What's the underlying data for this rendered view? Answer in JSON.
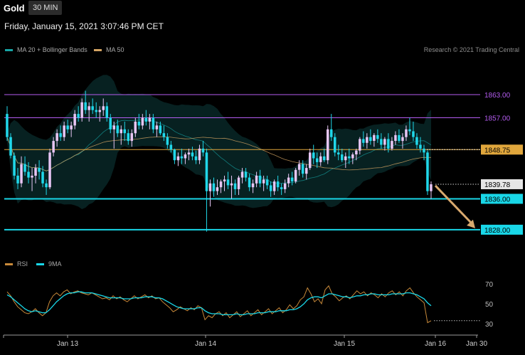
{
  "header": {
    "symbol": "Gold",
    "timeframe": "30 MIN",
    "datetime": "Friday, January 15, 2021 3:07:46 PM CET",
    "copyright": "Research © 2021 Trading Central"
  },
  "legend": {
    "bollinger_label": "MA 20 + Bollinger Bands",
    "bollinger_color": "#17a5a5",
    "ma50_label": "MA 50",
    "ma50_color": "#d4a463",
    "rsi_label": "RSI",
    "rsi_color": "#c98a3a",
    "rsi_ma_label": "9MA",
    "rsi_ma_color": "#19d7e8"
  },
  "levels": [
    {
      "label": "1863.00",
      "value": 1863.0,
      "color": "#b45cf0",
      "style": "line"
    },
    {
      "label": "1857.00",
      "value": 1857.0,
      "color": "#b45cf0",
      "style": "line"
    },
    {
      "label": "1848.75",
      "value": 1848.75,
      "color": "#e0a63c",
      "style": "line-box"
    },
    {
      "label": "1839.78",
      "value": 1839.78,
      "color": "#d9d9d9",
      "style": "dotted-box"
    },
    {
      "label": "1836.00",
      "value": 1836.0,
      "color": "#19d7e8",
      "style": "line-box"
    },
    {
      "label": "1828.00",
      "value": 1828.0,
      "color": "#19d7e8",
      "style": "line-box"
    }
  ],
  "rsi_ticks": [
    "70",
    "50",
    "30"
  ],
  "x_labels": [
    "Jan 13",
    "Jan 14",
    "Jan 15",
    "Jan 16",
    "Jan 30"
  ],
  "chart_data": {
    "type": "candlestick",
    "title": "Gold",
    "timeframe": "30 MIN",
    "y_range": [
      1823,
      1870
    ],
    "grid": false,
    "candles": [
      [
        1858.0,
        1860.0,
        1851.0,
        1852.0
      ],
      [
        1852.0,
        1853.0,
        1846.5,
        1847.2
      ],
      [
        1847.2,
        1848.0,
        1841.0,
        1842.0
      ],
      [
        1842.0,
        1844.0,
        1838.5,
        1840.0
      ],
      [
        1840.0,
        1847.0,
        1839.0,
        1845.0
      ],
      [
        1845.0,
        1847.0,
        1842.0,
        1843.0
      ],
      [
        1843.0,
        1845.5,
        1840.0,
        1841.5
      ],
      [
        1841.5,
        1844.0,
        1838.0,
        1842.0
      ],
      [
        1842.0,
        1845.0,
        1840.0,
        1844.0
      ],
      [
        1844.0,
        1846.0,
        1841.0,
        1843.0
      ],
      [
        1843.0,
        1844.5,
        1839.0,
        1840.0
      ],
      [
        1840.0,
        1841.0,
        1837.0,
        1839.0
      ],
      [
        1839.0,
        1849.0,
        1838.5,
        1848.0
      ],
      [
        1848.0,
        1852.0,
        1847.0,
        1851.0
      ],
      [
        1851.0,
        1854.0,
        1849.5,
        1853.0
      ],
      [
        1853.0,
        1855.0,
        1851.0,
        1852.0
      ],
      [
        1852.0,
        1856.0,
        1851.0,
        1855.0
      ],
      [
        1855.0,
        1856.5,
        1853.0,
        1854.0
      ],
      [
        1854.0,
        1856.0,
        1852.0,
        1855.0
      ],
      [
        1855.0,
        1859.0,
        1854.0,
        1858.0
      ],
      [
        1858.0,
        1860.0,
        1856.0,
        1857.0
      ],
      [
        1857.0,
        1862.0,
        1856.0,
        1861.0
      ],
      [
        1861.0,
        1864.0,
        1858.0,
        1859.0
      ],
      [
        1859.0,
        1861.0,
        1856.0,
        1860.0
      ],
      [
        1860.0,
        1862.0,
        1858.0,
        1859.0
      ],
      [
        1859.0,
        1861.0,
        1857.0,
        1858.5
      ],
      [
        1858.5,
        1860.0,
        1856.0,
        1859.0
      ],
      [
        1859.0,
        1862.0,
        1857.5,
        1860.0
      ],
      [
        1860.0,
        1861.0,
        1856.0,
        1857.0
      ],
      [
        1857.0,
        1858.0,
        1853.0,
        1854.0
      ],
      [
        1854.0,
        1856.0,
        1849.0,
        1855.0
      ],
      [
        1855.0,
        1856.5,
        1852.0,
        1853.0
      ],
      [
        1853.0,
        1855.0,
        1850.0,
        1854.0
      ],
      [
        1854.0,
        1856.0,
        1851.0,
        1853.0
      ],
      [
        1853.0,
        1854.0,
        1850.0,
        1851.0
      ],
      [
        1851.0,
        1854.0,
        1849.5,
        1853.0
      ],
      [
        1853.0,
        1857.0,
        1852.0,
        1856.0
      ],
      [
        1856.0,
        1858.0,
        1854.0,
        1855.0
      ],
      [
        1855.0,
        1858.0,
        1854.0,
        1857.0
      ],
      [
        1857.0,
        1859.0,
        1855.0,
        1856.0
      ],
      [
        1856.0,
        1858.0,
        1854.0,
        1857.0
      ],
      [
        1857.0,
        1858.0,
        1853.0,
        1854.0
      ],
      [
        1854.0,
        1856.0,
        1852.0,
        1855.0
      ],
      [
        1855.0,
        1856.0,
        1852.5,
        1853.0
      ],
      [
        1853.0,
        1855.0,
        1851.0,
        1852.0
      ],
      [
        1852.0,
        1853.0,
        1849.0,
        1850.0
      ],
      [
        1850.0,
        1851.0,
        1848.0,
        1848.75
      ],
      [
        1848.75,
        1849.0,
        1845.0,
        1846.0
      ],
      [
        1846.0,
        1848.0,
        1844.5,
        1847.0
      ],
      [
        1847.0,
        1849.0,
        1845.0,
        1846.5
      ],
      [
        1846.5,
        1848.0,
        1845.0,
        1847.5
      ],
      [
        1847.5,
        1849.0,
        1846.0,
        1848.0
      ],
      [
        1848.0,
        1849.5,
        1846.0,
        1847.0
      ],
      [
        1847.0,
        1848.5,
        1845.0,
        1846.0
      ],
      [
        1846.0,
        1850.0,
        1845.0,
        1849.0
      ],
      [
        1849.0,
        1851.0,
        1847.0,
        1848.0
      ],
      [
        1848.0,
        1849.0,
        1827.5,
        1838.0
      ],
      [
        1838.0,
        1841.0,
        1834.0,
        1840.0
      ],
      [
        1840.0,
        1841.5,
        1836.5,
        1838.0
      ],
      [
        1838.0,
        1841.0,
        1837.0,
        1839.0
      ],
      [
        1839.0,
        1841.0,
        1837.5,
        1840.5
      ],
      [
        1840.5,
        1842.0,
        1838.0,
        1841.0
      ],
      [
        1841.0,
        1843.0,
        1838.5,
        1839.5
      ],
      [
        1839.5,
        1842.0,
        1836.0,
        1840.0
      ],
      [
        1840.0,
        1841.0,
        1837.0,
        1838.5
      ],
      [
        1838.5,
        1842.0,
        1837.0,
        1841.5
      ],
      [
        1841.5,
        1844.0,
        1840.0,
        1843.0
      ],
      [
        1843.0,
        1844.0,
        1840.5,
        1841.5
      ],
      [
        1841.5,
        1842.5,
        1838.0,
        1839.0
      ],
      [
        1839.0,
        1841.0,
        1837.5,
        1840.0
      ],
      [
        1840.0,
        1843.0,
        1839.0,
        1842.0
      ],
      [
        1842.0,
        1843.5,
        1839.0,
        1840.0
      ],
      [
        1840.0,
        1842.0,
        1838.0,
        1841.0
      ],
      [
        1841.0,
        1842.0,
        1838.5,
        1839.5
      ],
      [
        1839.5,
        1840.5,
        1836.5,
        1838.0
      ],
      [
        1838.0,
        1841.0,
        1837.0,
        1840.5
      ],
      [
        1840.5,
        1842.0,
        1838.0,
        1839.0
      ],
      [
        1839.0,
        1840.0,
        1837.0,
        1838.5
      ],
      [
        1838.5,
        1841.0,
        1837.5,
        1840.0
      ],
      [
        1840.0,
        1842.5,
        1839.0,
        1841.5
      ],
      [
        1841.5,
        1843.0,
        1839.5,
        1840.5
      ],
      [
        1840.5,
        1844.0,
        1840.0,
        1843.5
      ],
      [
        1843.5,
        1846.0,
        1842.0,
        1845.0
      ],
      [
        1845.0,
        1846.0,
        1841.5,
        1842.5
      ],
      [
        1842.5,
        1845.0,
        1841.0,
        1844.0
      ],
      [
        1844.0,
        1849.0,
        1843.5,
        1848.0
      ],
      [
        1848.0,
        1850.0,
        1845.0,
        1846.5
      ],
      [
        1846.5,
        1848.0,
        1844.0,
        1845.5
      ],
      [
        1845.5,
        1848.0,
        1844.5,
        1847.0
      ],
      [
        1847.0,
        1849.0,
        1845.5,
        1846.0
      ],
      [
        1846.0,
        1855.0,
        1845.0,
        1854.0
      ],
      [
        1854.0,
        1858.0,
        1851.0,
        1852.0
      ],
      [
        1852.0,
        1853.0,
        1847.0,
        1848.0
      ],
      [
        1848.0,
        1850.0,
        1846.0,
        1847.5
      ],
      [
        1847.5,
        1849.0,
        1845.5,
        1846.0
      ],
      [
        1846.0,
        1848.0,
        1844.0,
        1847.0
      ],
      [
        1847.0,
        1849.0,
        1845.0,
        1846.5
      ],
      [
        1846.5,
        1848.0,
        1845.0,
        1847.5
      ],
      [
        1847.5,
        1849.0,
        1846.0,
        1848.5
      ],
      [
        1848.5,
        1852.0,
        1847.5,
        1851.5
      ],
      [
        1851.5,
        1853.5,
        1849.5,
        1850.5
      ],
      [
        1850.5,
        1853.0,
        1849.0,
        1852.0
      ],
      [
        1852.0,
        1854.0,
        1850.0,
        1851.0
      ],
      [
        1851.0,
        1853.0,
        1849.5,
        1852.5
      ],
      [
        1852.5,
        1854.0,
        1850.5,
        1851.5
      ],
      [
        1851.5,
        1853.0,
        1849.0,
        1850.0
      ],
      [
        1850.0,
        1852.0,
        1848.5,
        1851.5
      ],
      [
        1851.5,
        1853.0,
        1848.0,
        1849.0
      ],
      [
        1849.0,
        1852.0,
        1848.5,
        1851.0
      ],
      [
        1851.0,
        1853.5,
        1850.0,
        1852.5
      ],
      [
        1852.5,
        1854.0,
        1850.5,
        1851.0
      ],
      [
        1851.0,
        1853.0,
        1849.0,
        1852.0
      ],
      [
        1852.0,
        1855.0,
        1851.0,
        1854.0
      ],
      [
        1854.0,
        1857.0,
        1852.5,
        1853.5
      ],
      [
        1853.5,
        1856.0,
        1851.0,
        1852.0
      ],
      [
        1852.0,
        1853.0,
        1849.0,
        1850.0
      ],
      [
        1850.0,
        1852.0,
        1848.0,
        1849.0
      ],
      [
        1849.0,
        1850.0,
        1846.0,
        1848.0
      ],
      [
        1848.0,
        1848.5,
        1837.0,
        1838.0
      ],
      [
        1838.0,
        1840.5,
        1836.0,
        1839.78
      ]
    ],
    "rsi": [
      62,
      58,
      52,
      47,
      44,
      41,
      40,
      42,
      45,
      41,
      38,
      41,
      52,
      58,
      61,
      58,
      62,
      64,
      60,
      62,
      63,
      61,
      60,
      59,
      61,
      59,
      57,
      55,
      56,
      54,
      58,
      55,
      57,
      54,
      52,
      55,
      58,
      55,
      57,
      59,
      56,
      58,
      55,
      56,
      52,
      49,
      46,
      42,
      44,
      47,
      45,
      43,
      46,
      44,
      48,
      46,
      34,
      38,
      36,
      40,
      42,
      38,
      41,
      36,
      39,
      42,
      37,
      40,
      43,
      38,
      41,
      44,
      39,
      42,
      45,
      40,
      43,
      46,
      41,
      44,
      49,
      45,
      48,
      54,
      57,
      66,
      60,
      52,
      55,
      50,
      64,
      68,
      60,
      57,
      53,
      56,
      58,
      55,
      59,
      63,
      60,
      62,
      58,
      61,
      59,
      56,
      60,
      57,
      61,
      63,
      59,
      62,
      58,
      63,
      66,
      61,
      57,
      54,
      51,
      31,
      33
    ],
    "rsi_ma": [
      59,
      57,
      54,
      51,
      48,
      45,
      43,
      42,
      43,
      42,
      41,
      41,
      44,
      48,
      52,
      55,
      58,
      60,
      61,
      61,
      62,
      62,
      61,
      61,
      61,
      60,
      59,
      58,
      57,
      56,
      56,
      56,
      56,
      55,
      55,
      55,
      56,
      56,
      56,
      57,
      57,
      57,
      56,
      56,
      55,
      53,
      51,
      49,
      47,
      46,
      45,
      45,
      45,
      45,
      46,
      46,
      43,
      41,
      40,
      40,
      40,
      39,
      39,
      39,
      39,
      40,
      39,
      39,
      40,
      40,
      40,
      41,
      41,
      41,
      42,
      42,
      42,
      43,
      43,
      43,
      44,
      44,
      45,
      47,
      50,
      54,
      56,
      57,
      57,
      56,
      58,
      60,
      60,
      59,
      58,
      57,
      57,
      56,
      57,
      58,
      58,
      59,
      59,
      60,
      60,
      59,
      59,
      59,
      59,
      60,
      60,
      60,
      60,
      61,
      61,
      60,
      59,
      57,
      55,
      51,
      48
    ],
    "rsi_ticks": [
      70,
      50,
      30
    ],
    "x_labels": [
      "Jan 13",
      "Jan 14",
      "Jan 15",
      "Jan 16",
      "Jan 30"
    ],
    "forecast": {
      "from": 1839.78,
      "to": 1828.0
    }
  }
}
